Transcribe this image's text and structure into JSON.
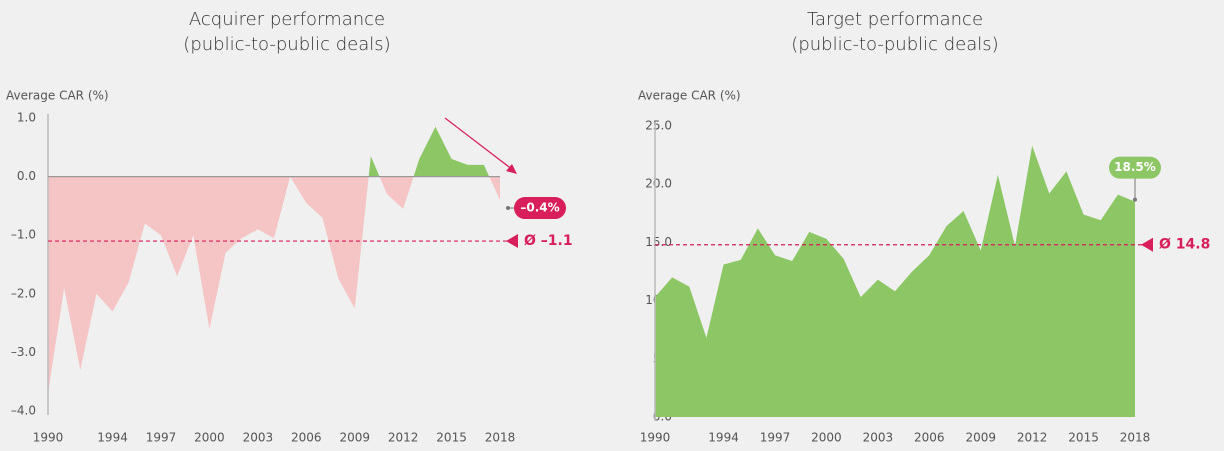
{
  "chart_data": [
    {
      "type": "area",
      "title": "Acquirer performance",
      "subtitle": "(public-to-public deals)",
      "ylabel": "Average CAR (%)",
      "x": [
        1990,
        1991,
        1992,
        1993,
        1994,
        1995,
        1996,
        1997,
        1998,
        1999,
        2000,
        2001,
        2002,
        2003,
        2004,
        2005,
        2006,
        2007,
        2008,
        2009,
        2010,
        2011,
        2012,
        2013,
        2014,
        2015,
        2016,
        2017,
        2018
      ],
      "values": [
        -3.7,
        -1.9,
        -3.3,
        -2.0,
        -2.3,
        -1.8,
        -0.8,
        -1.0,
        -1.7,
        -1.0,
        -2.6,
        -1.3,
        -1.05,
        -0.9,
        -1.05,
        0.0,
        -0.45,
        -0.7,
        -1.75,
        -2.25,
        0.35,
        -0.3,
        -0.55,
        0.3,
        0.85,
        0.3,
        0.2,
        0.2,
        -0.4
      ],
      "value_labels": [
        null,
        null,
        null,
        null,
        null,
        null,
        null,
        null,
        null,
        null,
        null,
        null,
        null,
        null,
        null,
        null,
        null,
        null,
        null,
        null,
        null,
        null,
        null,
        null,
        null,
        null,
        null,
        null,
        "–0.4%"
      ],
      "color": "#8cc665",
      "negative_color": "#f5c4c4",
      "label_color": "#d81e5b",
      "average": {
        "value": -1.1,
        "label": "Ø –1.1"
      },
      "average_color": "#d81e5b",
      "xlim": [
        1990,
        2018
      ],
      "xticks": [
        1990,
        1994,
        1997,
        2000,
        2003,
        2006,
        2009,
        2012,
        2015,
        2018
      ],
      "ylim": [
        -4,
        1
      ],
      "yticks": [
        {
          "value": 1,
          "label": "1.0"
        },
        {
          "value": 0,
          "label": "0.0"
        },
        {
          "value": -1,
          "label": "–1.0"
        },
        {
          "value": -2,
          "label": "–2.0"
        },
        {
          "value": -3,
          "label": "–3.0"
        },
        {
          "value": -4,
          "label": "–4.0"
        }
      ],
      "grid": false
    },
    {
      "type": "area",
      "title": "Target performance",
      "subtitle": "(public-to-public deals)",
      "ylabel": "Average CAR (%)",
      "x": [
        1990,
        1991,
        1992,
        1993,
        1994,
        1995,
        1996,
        1997,
        1998,
        1999,
        2000,
        2001,
        2002,
        2003,
        2004,
        2005,
        2006,
        2007,
        2008,
        2009,
        2010,
        2011,
        2012,
        2013,
        2014,
        2015,
        2016,
        2017,
        2018
      ],
      "values": [
        10.3,
        12.0,
        11.2,
        6.8,
        13.1,
        13.5,
        16.2,
        13.9,
        13.4,
        15.9,
        15.3,
        13.6,
        10.3,
        11.8,
        10.8,
        12.5,
        13.9,
        16.4,
        17.7,
        14.3,
        20.8,
        14.7,
        23.3,
        19.2,
        21.1,
        17.4,
        16.9,
        19.1,
        18.5
      ],
      "value_labels": [
        null,
        null,
        null,
        null,
        null,
        null,
        null,
        null,
        null,
        null,
        null,
        null,
        null,
        null,
        null,
        null,
        null,
        null,
        null,
        null,
        null,
        null,
        null,
        null,
        null,
        null,
        null,
        null,
        "18.5%"
      ],
      "color": "#8cc665",
      "label_color": "#8cc665",
      "average": {
        "value": 14.8,
        "label": "Ø 14.8"
      },
      "average_color": "#d81e5b",
      "xlim": [
        1990,
        2018
      ],
      "xticks": [
        1990,
        1994,
        1997,
        2000,
        2003,
        2006,
        2009,
        2012,
        2015,
        2018
      ],
      "ylim": [
        0,
        25
      ],
      "yticks": [
        {
          "value": 0,
          "label": "0.0"
        },
        {
          "value": 5,
          "label": "5.0"
        },
        {
          "value": 10,
          "label": "10.0"
        },
        {
          "value": 15,
          "label": "15.0"
        },
        {
          "value": 20,
          "label": "20.0"
        },
        {
          "value": 25,
          "label": "25.0"
        }
      ],
      "grid": false
    }
  ]
}
